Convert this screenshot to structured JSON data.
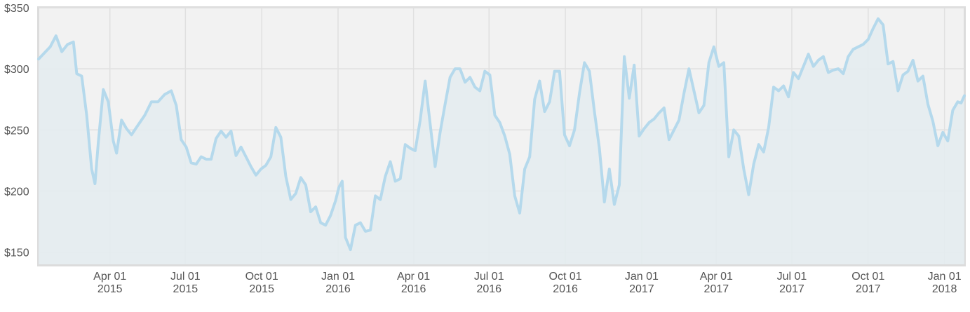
{
  "chart_data": {
    "type": "area",
    "title": "",
    "xlabel": "",
    "ylabel": "",
    "x_range": [
      "2015-01-05",
      "2018-01-25"
    ],
    "ylim": [
      140,
      350
    ],
    "y_ticks": [
      {
        "value": 150,
        "label": "$150"
      },
      {
        "value": 200,
        "label": "$200"
      },
      {
        "value": 250,
        "label": "$250"
      },
      {
        "value": 300,
        "label": "$300"
      },
      {
        "value": 350,
        "label": "$350"
      }
    ],
    "x_ticks": [
      {
        "date": "2015-04-01",
        "line1": "Apr 01",
        "line2": "2015"
      },
      {
        "date": "2015-07-01",
        "line1": "Jul 01",
        "line2": "2015"
      },
      {
        "date": "2015-10-01",
        "line1": "Oct 01",
        "line2": "2015"
      },
      {
        "date": "2016-01-01",
        "line1": "Jan 01",
        "line2": "2016"
      },
      {
        "date": "2016-04-01",
        "line1": "Apr 01",
        "line2": "2016"
      },
      {
        "date": "2016-07-01",
        "line1": "Jul 01",
        "line2": "2016"
      },
      {
        "date": "2016-10-01",
        "line1": "Oct 01",
        "line2": "2016"
      },
      {
        "date": "2017-01-01",
        "line1": "Jan 01",
        "line2": "2017"
      },
      {
        "date": "2017-04-01",
        "line1": "Apr 01",
        "line2": "2017"
      },
      {
        "date": "2017-07-01",
        "line1": "Jul 01",
        "line2": "2017"
      },
      {
        "date": "2017-10-01",
        "line1": "Oct 01",
        "line2": "2017"
      },
      {
        "date": "2018-01-01",
        "line1": "Jan 01",
        "line2": "2018"
      }
    ],
    "grid": true,
    "colors": {
      "line": "#b5d9ec",
      "fill": "#e4ecf0",
      "plot_bg": "#f2f2f2",
      "grid": "#e0e0e0",
      "border": "#dcdcdc"
    },
    "series": [
      {
        "points": [
          [
            "2015-01-05",
            308
          ],
          [
            "2015-01-12",
            313
          ],
          [
            "2015-01-19",
            318
          ],
          [
            "2015-01-26",
            327
          ],
          [
            "2015-02-02",
            314
          ],
          [
            "2015-02-09",
            320
          ],
          [
            "2015-02-16",
            322
          ],
          [
            "2015-02-20",
            296
          ],
          [
            "2015-02-26",
            294
          ],
          [
            "2015-03-04",
            262
          ],
          [
            "2015-03-10",
            218
          ],
          [
            "2015-03-14",
            206
          ],
          [
            "2015-03-18",
            240
          ],
          [
            "2015-03-24",
            283
          ],
          [
            "2015-03-30",
            273
          ],
          [
            "2015-04-05",
            241
          ],
          [
            "2015-04-09",
            231
          ],
          [
            "2015-04-15",
            258
          ],
          [
            "2015-04-21",
            251
          ],
          [
            "2015-04-27",
            246
          ],
          [
            "2015-05-05",
            254
          ],
          [
            "2015-05-13",
            262
          ],
          [
            "2015-05-21",
            273
          ],
          [
            "2015-05-29",
            273
          ],
          [
            "2015-06-06",
            279
          ],
          [
            "2015-06-14",
            282
          ],
          [
            "2015-06-20",
            270
          ],
          [
            "2015-06-26",
            242
          ],
          [
            "2015-07-02",
            236
          ],
          [
            "2015-07-08",
            223
          ],
          [
            "2015-07-14",
            222
          ],
          [
            "2015-07-20",
            228
          ],
          [
            "2015-07-26",
            226
          ],
          [
            "2015-08-01",
            226
          ],
          [
            "2015-08-07",
            243
          ],
          [
            "2015-08-13",
            249
          ],
          [
            "2015-08-19",
            244
          ],
          [
            "2015-08-25",
            249
          ],
          [
            "2015-08-31",
            229
          ],
          [
            "2015-09-06",
            236
          ],
          [
            "2015-09-12",
            228
          ],
          [
            "2015-09-18",
            220
          ],
          [
            "2015-09-24",
            213
          ],
          [
            "2015-09-30",
            218
          ],
          [
            "2015-10-06",
            221
          ],
          [
            "2015-10-12",
            228
          ],
          [
            "2015-10-18",
            252
          ],
          [
            "2015-10-24",
            244
          ],
          [
            "2015-10-30",
            212
          ],
          [
            "2015-11-05",
            193
          ],
          [
            "2015-11-11",
            198
          ],
          [
            "2015-11-17",
            211
          ],
          [
            "2015-11-23",
            205
          ],
          [
            "2015-11-29",
            183
          ],
          [
            "2015-12-05",
            187
          ],
          [
            "2015-12-11",
            174
          ],
          [
            "2015-12-17",
            172
          ],
          [
            "2015-12-23",
            180
          ],
          [
            "2015-12-29",
            192
          ],
          [
            "2016-01-02",
            203
          ],
          [
            "2016-01-06",
            208
          ],
          [
            "2016-01-10",
            162
          ],
          [
            "2016-01-16",
            152
          ],
          [
            "2016-01-22",
            172
          ],
          [
            "2016-01-28",
            174
          ],
          [
            "2016-02-03",
            167
          ],
          [
            "2016-02-09",
            168
          ],
          [
            "2016-02-15",
            196
          ],
          [
            "2016-02-21",
            193
          ],
          [
            "2016-02-27",
            212
          ],
          [
            "2016-03-04",
            224
          ],
          [
            "2016-03-10",
            208
          ],
          [
            "2016-03-16",
            210
          ],
          [
            "2016-03-22",
            238
          ],
          [
            "2016-03-28",
            235
          ],
          [
            "2016-04-03",
            233
          ],
          [
            "2016-04-09",
            258
          ],
          [
            "2016-04-15",
            290
          ],
          [
            "2016-04-21",
            255
          ],
          [
            "2016-04-27",
            220
          ],
          [
            "2016-05-03",
            248
          ],
          [
            "2016-05-09",
            271
          ],
          [
            "2016-05-15",
            293
          ],
          [
            "2016-05-21",
            300
          ],
          [
            "2016-05-27",
            300
          ],
          [
            "2016-06-02",
            289
          ],
          [
            "2016-06-08",
            293
          ],
          [
            "2016-06-14",
            285
          ],
          [
            "2016-06-20",
            282
          ],
          [
            "2016-06-26",
            298
          ],
          [
            "2016-07-02",
            295
          ],
          [
            "2016-07-08",
            262
          ],
          [
            "2016-07-14",
            256
          ],
          [
            "2016-07-20",
            245
          ],
          [
            "2016-07-26",
            230
          ],
          [
            "2016-08-01",
            196
          ],
          [
            "2016-08-07",
            182
          ],
          [
            "2016-08-13",
            218
          ],
          [
            "2016-08-19",
            228
          ],
          [
            "2016-08-25",
            275
          ],
          [
            "2016-08-31",
            290
          ],
          [
            "2016-09-06",
            265
          ],
          [
            "2016-09-12",
            273
          ],
          [
            "2016-09-18",
            298
          ],
          [
            "2016-09-24",
            298
          ],
          [
            "2016-09-30",
            246
          ],
          [
            "2016-10-06",
            237
          ],
          [
            "2016-10-12",
            250
          ],
          [
            "2016-10-18",
            280
          ],
          [
            "2016-10-24",
            305
          ],
          [
            "2016-10-30",
            298
          ],
          [
            "2016-11-05",
            265
          ],
          [
            "2016-11-11",
            235
          ],
          [
            "2016-11-17",
            191
          ],
          [
            "2016-11-23",
            218
          ],
          [
            "2016-11-29",
            189
          ],
          [
            "2016-12-05",
            205
          ],
          [
            "2016-12-11",
            310
          ],
          [
            "2016-12-17",
            276
          ],
          [
            "2016-12-23",
            303
          ],
          [
            "2016-12-29",
            245
          ],
          [
            "2017-01-04",
            251
          ],
          [
            "2017-01-10",
            256
          ],
          [
            "2017-01-16",
            259
          ],
          [
            "2017-01-22",
            264
          ],
          [
            "2017-01-28",
            268
          ],
          [
            "2017-02-03",
            242
          ],
          [
            "2017-02-09",
            250
          ],
          [
            "2017-02-15",
            258
          ],
          [
            "2017-02-21",
            280
          ],
          [
            "2017-02-27",
            300
          ],
          [
            "2017-03-05",
            282
          ],
          [
            "2017-03-11",
            264
          ],
          [
            "2017-03-17",
            270
          ],
          [
            "2017-03-23",
            305
          ],
          [
            "2017-03-29",
            318
          ],
          [
            "2017-04-04",
            302
          ],
          [
            "2017-04-10",
            305
          ],
          [
            "2017-04-16",
            228
          ],
          [
            "2017-04-22",
            250
          ],
          [
            "2017-04-28",
            245
          ],
          [
            "2017-05-04",
            218
          ],
          [
            "2017-05-10",
            197
          ],
          [
            "2017-05-16",
            222
          ],
          [
            "2017-05-22",
            238
          ],
          [
            "2017-05-28",
            232
          ],
          [
            "2017-06-03",
            252
          ],
          [
            "2017-06-09",
            285
          ],
          [
            "2017-06-15",
            282
          ],
          [
            "2017-06-21",
            286
          ],
          [
            "2017-06-27",
            277
          ],
          [
            "2017-07-03",
            297
          ],
          [
            "2017-07-09",
            292
          ],
          [
            "2017-07-15",
            302
          ],
          [
            "2017-07-21",
            312
          ],
          [
            "2017-07-27",
            302
          ],
          [
            "2017-08-02",
            307
          ],
          [
            "2017-08-08",
            310
          ],
          [
            "2017-08-14",
            297
          ],
          [
            "2017-08-20",
            299
          ],
          [
            "2017-08-26",
            300
          ],
          [
            "2017-09-01",
            296
          ],
          [
            "2017-09-07",
            310
          ],
          [
            "2017-09-13",
            316
          ],
          [
            "2017-09-19",
            318
          ],
          [
            "2017-09-25",
            320
          ],
          [
            "2017-10-01",
            324
          ],
          [
            "2017-10-07",
            333
          ],
          [
            "2017-10-13",
            341
          ],
          [
            "2017-10-19",
            336
          ],
          [
            "2017-10-25",
            304
          ],
          [
            "2017-10-31",
            306
          ],
          [
            "2017-11-06",
            282
          ],
          [
            "2017-11-12",
            295
          ],
          [
            "2017-11-18",
            298
          ],
          [
            "2017-11-24",
            307
          ],
          [
            "2017-11-30",
            290
          ],
          [
            "2017-12-06",
            294
          ],
          [
            "2017-12-12",
            271
          ],
          [
            "2017-12-18",
            257
          ],
          [
            "2017-12-24",
            237
          ],
          [
            "2017-12-30",
            248
          ],
          [
            "2018-01-05",
            241
          ],
          [
            "2018-01-11",
            266
          ],
          [
            "2018-01-17",
            273
          ],
          [
            "2018-01-21",
            272
          ],
          [
            "2018-01-25",
            278
          ]
        ]
      }
    ]
  }
}
